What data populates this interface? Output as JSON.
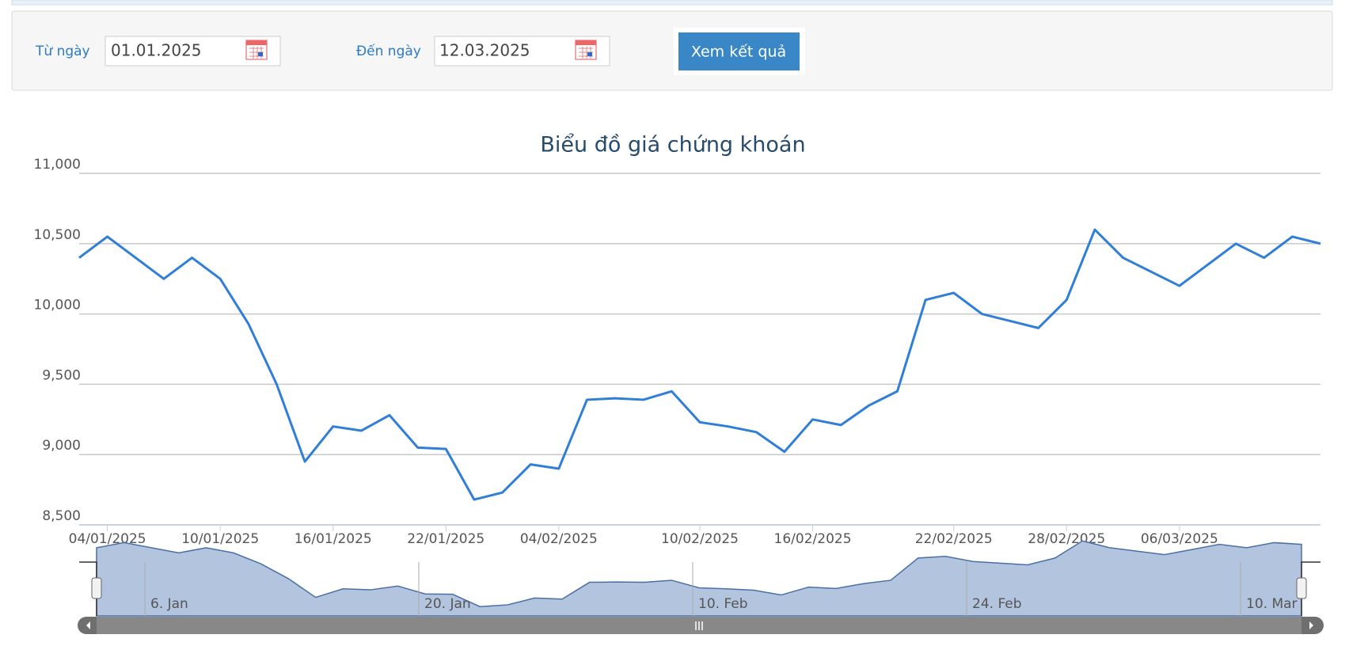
{
  "form": {
    "from_label": "Từ ngày",
    "from_value": "01.01.2025",
    "to_label": "Đến ngày",
    "to_value": "12.03.2025",
    "submit": "Xem kết quả"
  },
  "chart_data": {
    "type": "line",
    "title": "Biểu đồ giá chứng khoán",
    "categories": [
      null,
      "04/01/2025",
      null,
      null,
      null,
      "10/01/2025",
      null,
      null,
      null,
      "16/01/2025",
      null,
      null,
      null,
      "22/01/2025",
      null,
      null,
      null,
      "04/02/2025",
      null,
      null,
      null,
      null,
      "10/02/2025",
      null,
      null,
      null,
      "16/02/2025",
      null,
      null,
      null,
      null,
      "22/02/2025",
      null,
      null,
      null,
      "28/02/2025",
      null,
      null,
      null,
      "06/03/2025",
      null,
      null,
      null,
      null,
      null
    ],
    "series": [
      {
        "name": "Giá",
        "color": "#2f7ed8",
        "values": [
          10400,
          10550,
          10400,
          10250,
          10400,
          10250,
          9930,
          9500,
          8950,
          9200,
          9170,
          9280,
          9050,
          9040,
          8680,
          8730,
          8930,
          8900,
          9390,
          9400,
          9390,
          9450,
          9230,
          9200,
          9160,
          9020,
          9250,
          9210,
          9350,
          9450,
          10100,
          10150,
          10000,
          9950,
          9900,
          10100,
          10600,
          10400,
          10300,
          10200,
          10350,
          10500,
          10400,
          10550,
          10500
        ]
      }
    ],
    "ylim": [
      8500,
      11000
    ],
    "yticks": [
      {
        "value": 8500,
        "label": "8,500"
      },
      {
        "value": 9000,
        "label": "9,000"
      },
      {
        "value": 9500,
        "label": "9,500"
      },
      {
        "value": 10000,
        "label": "10,000"
      },
      {
        "value": 10500,
        "label": "10,500"
      },
      {
        "value": 11000,
        "label": "11,000"
      }
    ],
    "grid": true,
    "navigator": {
      "labels": [
        "6. Jan",
        "20. Jan",
        "10. Feb",
        "24. Feb",
        "10. Mar"
      ]
    }
  }
}
